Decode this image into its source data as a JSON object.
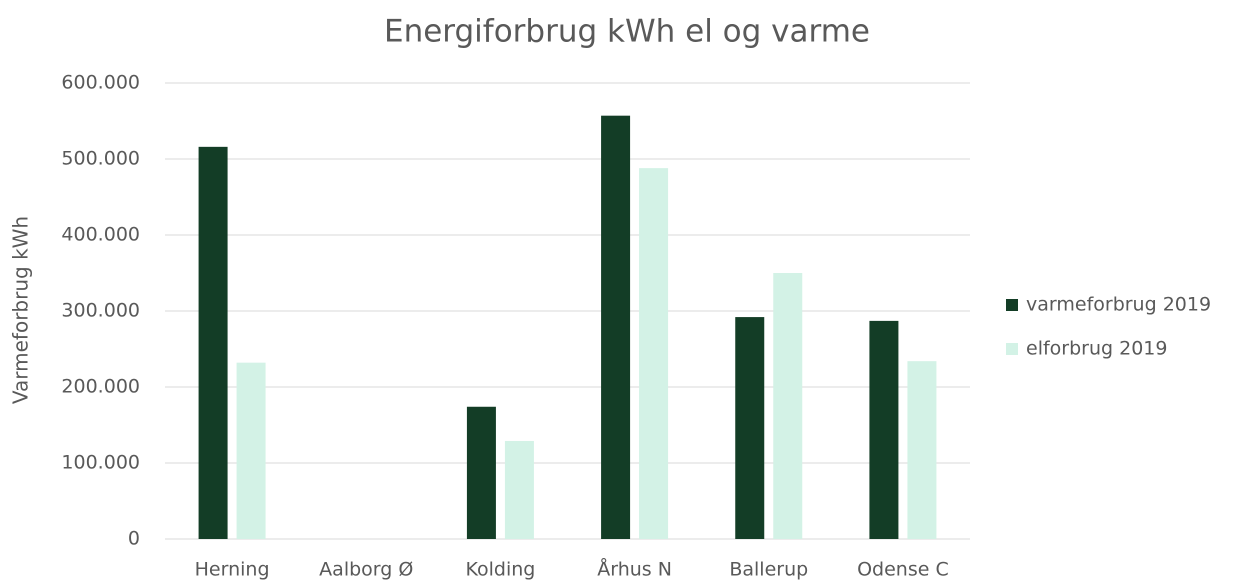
{
  "chart_data": {
    "type": "bar",
    "title": "Energiforbrug kWh el og varme",
    "y_label": "Varmeforbrug kWh",
    "categories": [
      "Herning",
      "Aalborg Ø",
      "Kolding",
      "Århus N",
      "Ballerup",
      "Odense C"
    ],
    "series": [
      {
        "name": "varmeforbrug 2019",
        "color": "#133d26",
        "values": [
          516000,
          null,
          174000,
          557000,
          292000,
          287000
        ]
      },
      {
        "name": "elforbrug 2019",
        "color": "#d3f2e6",
        "values": [
          232000,
          null,
          129000,
          488000,
          350000,
          234000
        ]
      }
    ],
    "ylim": [
      0,
      600000
    ],
    "yticks": [
      0,
      {
        "value": 100000,
        "label": "100.000"
      },
      {
        "value": 200000,
        "label": "200.000"
      },
      {
        "value": 300000,
        "label": "300.000"
      },
      {
        "value": 400000,
        "label": "400.000"
      },
      {
        "value": 500000,
        "label": "500.000"
      },
      {
        "value": 600000,
        "label": "600.000"
      }
    ],
    "grid": true,
    "legend": "right"
  }
}
